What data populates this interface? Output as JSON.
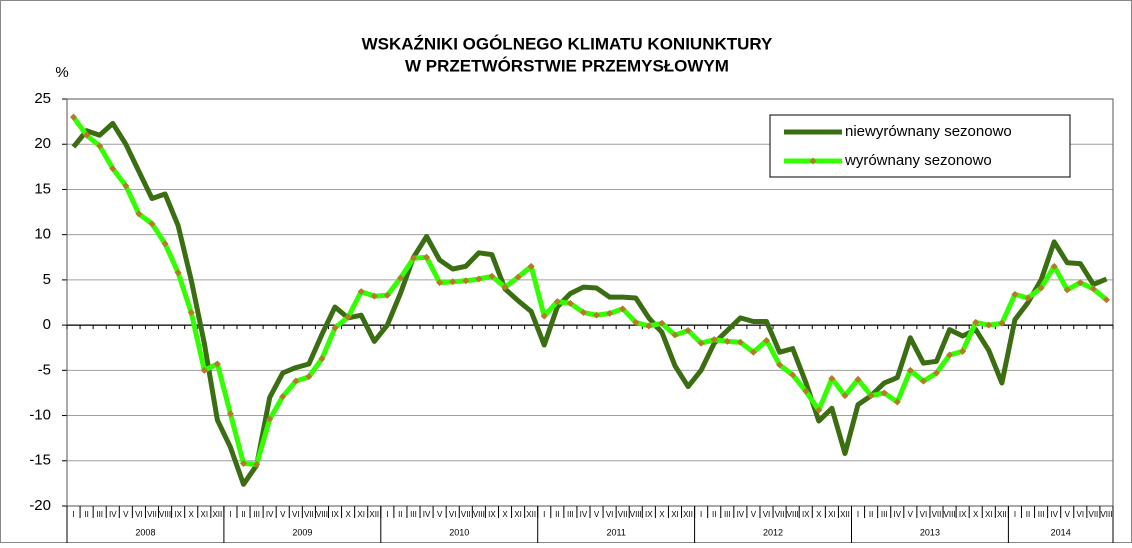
{
  "chart_data": {
    "type": "line",
    "title": [
      "WSKAŹNIKI OGÓLNEGO KLIMATU KONIUNKTURY",
      "W PRZETWÓRSTWIE PRZEMYSŁOWYM"
    ],
    "y_label": "%",
    "categories": [
      "I",
      "II",
      "III",
      "IV",
      "V",
      "VI",
      "VII",
      "VIII",
      "IX",
      "X",
      "XI",
      "XII",
      "I",
      "II",
      "III",
      "IV",
      "V",
      "VI",
      "VII",
      "VIII",
      "IX",
      "X",
      "XI",
      "XII",
      "I",
      "II",
      "III",
      "IV",
      "V",
      "VI",
      "VII",
      "VIII",
      "IX",
      "X",
      "XI",
      "XII",
      "I",
      "II",
      "III",
      "IV",
      "V",
      "VI",
      "VII",
      "VIII",
      "IX",
      "X",
      "XI",
      "XII",
      "I",
      "II",
      "III",
      "IV",
      "V",
      "VI",
      "VII",
      "VIII",
      "IX",
      "X",
      "XI",
      "XII",
      "I",
      "II",
      "III",
      "IV",
      "V",
      "VI",
      "VII",
      "VIII",
      "IX",
      "X",
      "XI",
      "XII",
      "I",
      "II",
      "III",
      "IV",
      "V",
      "VI",
      "VII",
      "VIII"
    ],
    "years": [
      "2008",
      "2009",
      "2010",
      "2011",
      "2012",
      "2013",
      "2014"
    ],
    "series": [
      {
        "name": "niewyrównany sezonowo",
        "color": "#3b6e12",
        "values": [
          19.7,
          21.5,
          21,
          22.3,
          20,
          17,
          14,
          14.5,
          11,
          5,
          -2,
          -10.5,
          -13.5,
          -17.6,
          -15.5,
          -8,
          -5.3,
          -4.7,
          -4.3,
          -1,
          2,
          0.8,
          1.1,
          -1.8,
          0,
          3.5,
          7.5,
          9.8,
          7.2,
          6.2,
          6.5,
          8,
          7.8,
          4,
          2.7,
          1.5,
          -2.2,
          2,
          3.5,
          4.2,
          4.1,
          3.1,
          3.1,
          3,
          0.8,
          -0.8,
          -4.5,
          -6.8,
          -5,
          -2,
          -0.6,
          0.8,
          0.4,
          0.4,
          -3,
          -2.6,
          -6.3,
          -10.6,
          -9.2,
          -14.2,
          -8.8,
          -7.8,
          -6.4,
          -5.8,
          -1.4,
          -4.2,
          -4,
          -0.5,
          -1.2,
          -0.5,
          -2.8,
          -6.4,
          0.6,
          2.5,
          5,
          9.2,
          6.9,
          6.8,
          4.5,
          5.1
        ]
      },
      {
        "name": "wyrównany sezonowo",
        "color": "#33ff00",
        "marker_color": "#b5792a",
        "values": [
          23,
          21,
          19.8,
          17.3,
          15.4,
          12.3,
          11.2,
          9,
          5.8,
          1.4,
          -5,
          -4.3,
          -9.8,
          -15.3,
          -15.4,
          -10.4,
          -7.9,
          -6.2,
          -5.7,
          -3.7,
          -0.3,
          0.9,
          3.7,
          3.2,
          3.3,
          5.2,
          7.4,
          7.5,
          4.7,
          4.8,
          4.9,
          5.1,
          5.4,
          4.2,
          5.3,
          6.5,
          1,
          2.6,
          2.4,
          1.4,
          1.1,
          1.3,
          1.8,
          0.3,
          -0.1,
          0.2,
          -1.1,
          -0.6,
          -2,
          -1.6,
          -1.8,
          -1.9,
          -3,
          -1.7,
          -4.4,
          -5.5,
          -7.3,
          -9.4,
          -5.9,
          -7.8,
          -6,
          -7.8,
          -7.5,
          -8.5,
          -5,
          -6.2,
          -5.3,
          -3.3,
          -2.9,
          0.3,
          0,
          0.2,
          3.4,
          3,
          4.1,
          6.5,
          3.9,
          4.7,
          4,
          2.8
        ]
      }
    ],
    "ylim": [
      -20,
      25
    ],
    "yticks": [
      -20,
      -15,
      -10,
      -5,
      0,
      5,
      10,
      15,
      20,
      25
    ],
    "grid": true,
    "legend": "upper right"
  }
}
